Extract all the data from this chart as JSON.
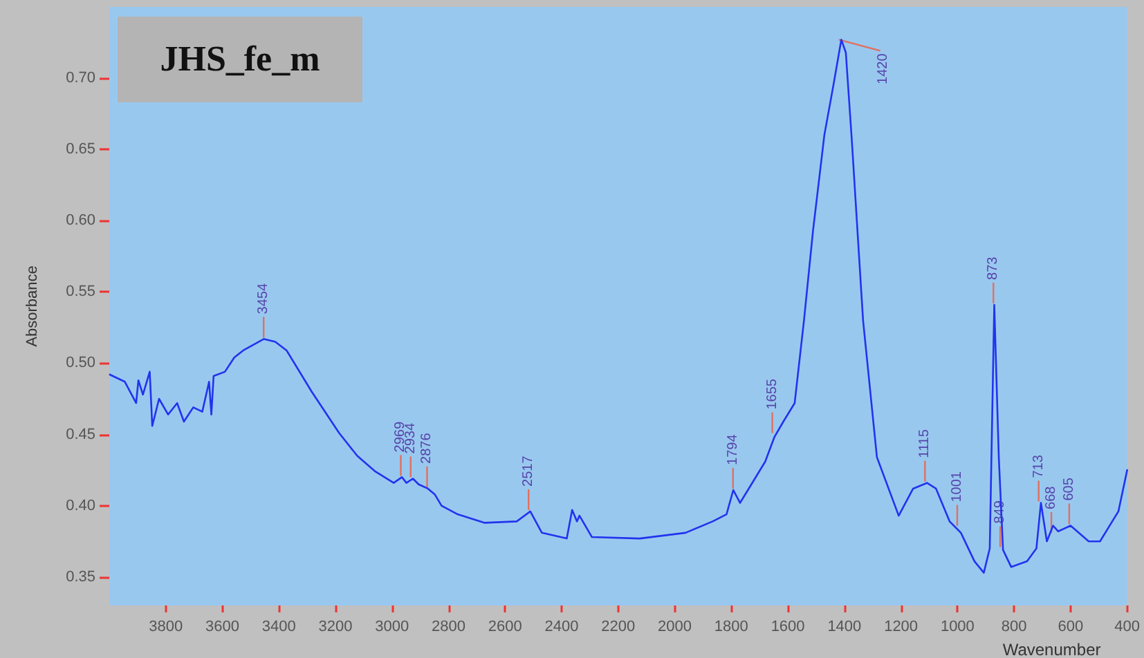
{
  "chart_data": {
    "type": "line",
    "title": "JHS_fe_m",
    "xlabel": "Wavenumber",
    "ylabel": "Absorbance",
    "xlim": [
      4000,
      400
    ],
    "ylim": [
      0.33,
      0.75
    ],
    "xticks": [
      3800,
      3600,
      3400,
      3200,
      3000,
      2800,
      2600,
      2400,
      2200,
      2000,
      1800,
      1600,
      1400,
      1200,
      1000,
      800,
      600,
      400
    ],
    "yticks": [
      {
        "value": 0.35,
        "label": "0.35"
      },
      {
        "value": 0.4,
        "label": "0.40"
      },
      {
        "value": 0.45,
        "label": "0.45"
      },
      {
        "value": 0.5,
        "label": "0.50"
      },
      {
        "value": 0.55,
        "label": "0.55"
      },
      {
        "value": 0.6,
        "label": "0.60"
      },
      {
        "value": 0.65,
        "label": "0.65"
      },
      {
        "value": 0.7,
        "label": "0.70"
      }
    ],
    "grid": false,
    "marker": "none",
    "line_style": "solid",
    "series": [
      {
        "color": "#2233ee",
        "x": [
          3998,
          3945,
          3905,
          3897,
          3881,
          3857,
          3848,
          3824,
          3792,
          3760,
          3736,
          3703,
          3671,
          3647,
          3639,
          3631,
          3591,
          3558,
          3526,
          3453,
          3413,
          3373,
          3284,
          3187,
          3123,
          3059,
          2994,
          2965,
          2949,
          2926,
          2906,
          2873,
          2849,
          2825,
          2768,
          2672,
          2559,
          2511,
          2470,
          2382,
          2363,
          2346,
          2337,
          2293,
          2124,
          1962,
          1866,
          1817,
          1793,
          1769,
          1729,
          1680,
          1648,
          1616,
          1576,
          1543,
          1511,
          1471,
          1439,
          1411,
          1395,
          1374,
          1334,
          1285,
          1208,
          1157,
          1108,
          1076,
          1028,
          988,
          940,
          907,
          886,
          870,
          854,
          839,
          810,
          754,
          721,
          705,
          684,
          662,
          644,
          600,
          536,
          496,
          431,
          400
        ],
        "values": [
          0.492,
          0.487,
          0.472,
          0.488,
          0.478,
          0.494,
          0.456,
          0.475,
          0.464,
          0.472,
          0.459,
          0.469,
          0.466,
          0.487,
          0.464,
          0.491,
          0.494,
          0.504,
          0.509,
          0.517,
          0.515,
          0.509,
          0.48,
          0.451,
          0.435,
          0.424,
          0.416,
          0.42,
          0.416,
          0.419,
          0.415,
          0.412,
          0.408,
          0.4,
          0.394,
          0.388,
          0.389,
          0.396,
          0.381,
          0.377,
          0.397,
          0.389,
          0.393,
          0.378,
          0.377,
          0.381,
          0.389,
          0.394,
          0.411,
          0.402,
          0.415,
          0.431,
          0.448,
          0.459,
          0.472,
          0.53,
          0.593,
          0.66,
          0.695,
          0.727,
          0.718,
          0.657,
          0.53,
          0.434,
          0.393,
          0.412,
          0.416,
          0.412,
          0.389,
          0.381,
          0.361,
          0.353,
          0.37,
          0.541,
          0.434,
          0.369,
          0.357,
          0.361,
          0.37,
          0.402,
          0.375,
          0.386,
          0.382,
          0.386,
          0.375,
          0.375,
          0.396,
          0.425
        ]
      }
    ],
    "annotations": [
      {
        "text": "3454",
        "x": 3454,
        "y": 0.517
      },
      {
        "text": "2969",
        "x": 2969,
        "y": 0.42
      },
      {
        "text": "2934",
        "x": 2934,
        "y": 0.419
      },
      {
        "text": "2876",
        "x": 2876,
        "y": 0.412
      },
      {
        "text": "2517",
        "x": 2517,
        "y": 0.396
      },
      {
        "text": "1794",
        "x": 1794,
        "y": 0.411
      },
      {
        "text": "1655",
        "x": 1655,
        "y": 0.45
      },
      {
        "text": "1420",
        "x": 1420,
        "y": 0.727
      },
      {
        "text": "1115",
        "x": 1115,
        "y": 0.416
      },
      {
        "text": "1001",
        "x": 1001,
        "y": 0.385
      },
      {
        "text": "873",
        "x": 873,
        "y": 0.541
      },
      {
        "text": "849",
        "x": 849,
        "y": 0.37
      },
      {
        "text": "713",
        "x": 713,
        "y": 0.402
      },
      {
        "text": "668",
        "x": 668,
        "y": 0.38
      },
      {
        "text": "605",
        "x": 605,
        "y": 0.386
      }
    ]
  }
}
